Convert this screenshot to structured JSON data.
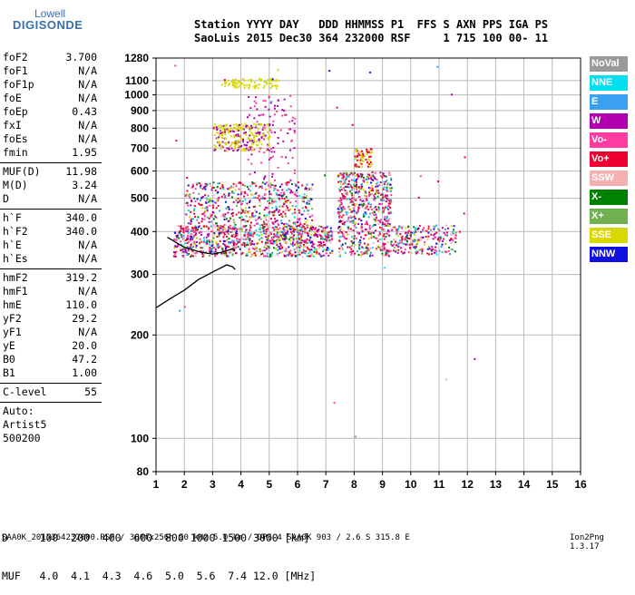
{
  "logo": {
    "top": "Lowell",
    "bottom": "DIGISONDE"
  },
  "header": {
    "line1": "Station YYYY DAY   DDD HHMMSS P1  FFS S AXN PPS IGA PS",
    "line2": "SaoLuis 2015 Dec30 364 232000 RSF     1 715 100 00- 11"
  },
  "params_a": [
    {
      "name": "foF2",
      "value": "3.700"
    },
    {
      "name": "foF1",
      "value": "N/A"
    },
    {
      "name": "foF1p",
      "value": "N/A"
    },
    {
      "name": "foE",
      "value": "N/A"
    },
    {
      "name": "foEp",
      "value": "0.43"
    },
    {
      "name": "fxI",
      "value": "N/A"
    },
    {
      "name": "foEs",
      "value": "N/A"
    },
    {
      "name": "fmin",
      "value": "1.95"
    }
  ],
  "params_b": [
    {
      "name": "MUF(D)",
      "value": "11.98"
    },
    {
      "name": "M(D)",
      "value": "3.24"
    },
    {
      "name": "D",
      "value": "N/A"
    }
  ],
  "params_c": [
    {
      "name": "h`F",
      "value": "340.0"
    },
    {
      "name": "h`F2",
      "value": "340.0"
    },
    {
      "name": "h`E",
      "value": "N/A"
    },
    {
      "name": "h`Es",
      "value": "N/A"
    }
  ],
  "params_d": [
    {
      "name": "hmF2",
      "value": "319.2"
    },
    {
      "name": "hmF1",
      "value": "N/A"
    },
    {
      "name": "hmE",
      "value": "110.0"
    },
    {
      "name": "yF2",
      "value": "29.2"
    },
    {
      "name": "yF1",
      "value": "N/A"
    },
    {
      "name": "yE",
      "value": "20.0"
    },
    {
      "name": "B0",
      "value": "47.2"
    },
    {
      "name": "B1",
      "value": "1.00"
    }
  ],
  "clevel": {
    "name": "C-level",
    "value": "55"
  },
  "auto": [
    "Auto:",
    "Artist5",
    "500200"
  ],
  "legend": [
    {
      "label": "NoVal",
      "color": "#9a9a9a"
    },
    {
      "label": "NNE",
      "color": "#00e0f0"
    },
    {
      "label": "E",
      "color": "#3aa0f0"
    },
    {
      "label": "W",
      "color": "#b000b0"
    },
    {
      "label": "Vo-",
      "color": "#ff3ca0"
    },
    {
      "label": "Vo+",
      "color": "#f00030"
    },
    {
      "label": "SSW",
      "color": "#f4b0b0"
    },
    {
      "label": "X-",
      "color": "#008000"
    },
    {
      "label": "X+",
      "color": "#70b050"
    },
    {
      "label": "SSE",
      "color": "#d8d800"
    },
    {
      "label": "NNW",
      "color": "#1010e0"
    }
  ],
  "footer": {
    "line1": "D     100  200  400  600  800 1000 1500 3000 [km]",
    "line2": "MUF   4.0  4.1  4.3  4.6  5.0  5.6  7.4 12.0 [MHz]",
    "file_line": "SAA0K_2015364232000.RSF / 300fx256h 50 kHz 5.0 km / DPS-4 SAA0K 903 / 2.6 S 315.8 E",
    "version": "Ion2Png 1.3.17"
  },
  "chart_data": {
    "type": "scatter",
    "title": "",
    "xlabel": "",
    "ylabel": "",
    "xlim": [
      1,
      16
    ],
    "ylim": [
      80,
      1280
    ],
    "y_scale": "log",
    "x_ticks": [
      1,
      2,
      3,
      4,
      5,
      6,
      7,
      8,
      9,
      10,
      11,
      12,
      13,
      14,
      15,
      16
    ],
    "y_ticks": [
      80,
      100,
      200,
      300,
      400,
      500,
      600,
      700,
      800,
      900,
      1000,
      1100,
      1280
    ],
    "grid": true,
    "trace": {
      "name": "",
      "x": [
        1.0,
        1.5,
        2.0,
        2.5,
        3.0,
        3.5,
        3.7,
        3.8
      ],
      "y": [
        240,
        255,
        270,
        290,
        305,
        320,
        316,
        310
      ]
    },
    "trace_lower": {
      "x": [
        1.4,
        2.0,
        2.6,
        3.0,
        3.3,
        3.7,
        3.8
      ],
      "y": [
        385,
        360,
        348,
        344,
        348,
        356,
        352
      ]
    }
  }
}
